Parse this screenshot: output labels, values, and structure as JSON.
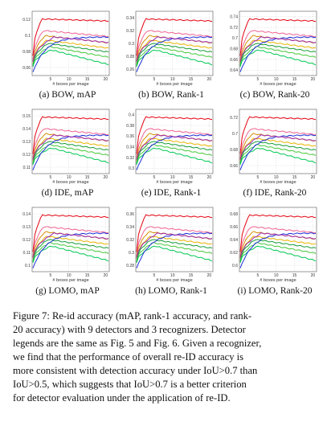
{
  "figure": {
    "panels": [
      {
        "caption": "(a) BOW, mAP",
        "xlabel": "# boxes per image",
        "yticks": [
          "0.12",
          "0.1",
          "0.08",
          "0.06"
        ],
        "xticks": [
          "5",
          "10",
          "15",
          "20"
        ]
      },
      {
        "caption": "(b) BOW, Rank-1",
        "xlabel": "# boxes per image",
        "yticks": [
          "0.34",
          "0.32",
          "0.3",
          "0.28",
          "0.26"
        ],
        "xticks": [
          "5",
          "10",
          "15",
          "20"
        ]
      },
      {
        "caption": "(c) BOW, Rank-20",
        "xlabel": "# boxes per image",
        "yticks": [
          "0.74",
          "0.72",
          "0.7",
          "0.68",
          "0.66",
          "0.64"
        ],
        "xticks": [
          "5",
          "10",
          "15",
          "20"
        ]
      },
      {
        "caption": "(d) IDE, mAP",
        "xlabel": "# boxes per image",
        "yticks": [
          "0.15",
          "0.14",
          "0.13",
          "0.12",
          "0.11"
        ],
        "xticks": [
          "5",
          "10",
          "15",
          "20"
        ]
      },
      {
        "caption": "(e) IDE, Rank-1",
        "xlabel": "# boxes per image",
        "yticks": [
          "0.4",
          "0.38",
          "0.36",
          "0.34",
          "0.32",
          "0.3"
        ],
        "xticks": [
          "5",
          "10",
          "15",
          "20"
        ]
      },
      {
        "caption": "(f) IDE, Rank-20",
        "xlabel": "# boxes per image",
        "yticks": [
          "0.72",
          "0.7",
          "0.68",
          "0.66"
        ],
        "xticks": [
          "5",
          "10",
          "15",
          "20"
        ]
      },
      {
        "caption": "(g) LOMO, mAP",
        "xlabel": "# boxes per image",
        "yticks": [
          "0.14",
          "0.13",
          "0.12",
          "0.11",
          "0.1"
        ],
        "xticks": [
          "5",
          "10",
          "15",
          "20"
        ]
      },
      {
        "caption": "(h) LOMO, Rank-1",
        "xlabel": "# boxes per image",
        "yticks": [
          "0.36",
          "0.34",
          "0.32",
          "0.3",
          "0.28"
        ],
        "xticks": [
          "5",
          "10",
          "15",
          "20"
        ]
      },
      {
        "caption": "(i) LOMO, Rank-20",
        "xlabel": "# boxes per image",
        "yticks": [
          "0.68",
          "0.66",
          "0.64",
          "0.62",
          "0.6"
        ],
        "xticks": [
          "5",
          "10",
          "15",
          "20"
        ]
      }
    ],
    "series_colors": [
      "#e3000f",
      "#f06292",
      "#d48a00",
      "#e6b400",
      "#1a9e3a",
      "#47c93c",
      "#00c853",
      "#1e2fd6",
      "#9c27b0"
    ]
  },
  "caption": {
    "lines": [
      "Figure 7: Re-id accuracy (mAP, rank-1 accuracy, and rank-",
      "20 accuracy) with 9 detectors and 3 recognizers. Detector",
      "legends are the same as Fig. 5 and Fig. 6. Given a recognizer,",
      "we find that the performance of overall re-ID accuracy is",
      "more consistent with detection accuracy under IoU>0.7 than",
      "IoU>0.5, which suggests that IoU>0.7 is a better criterion",
      "for detector evaluation under the application of re-ID."
    ]
  }
}
